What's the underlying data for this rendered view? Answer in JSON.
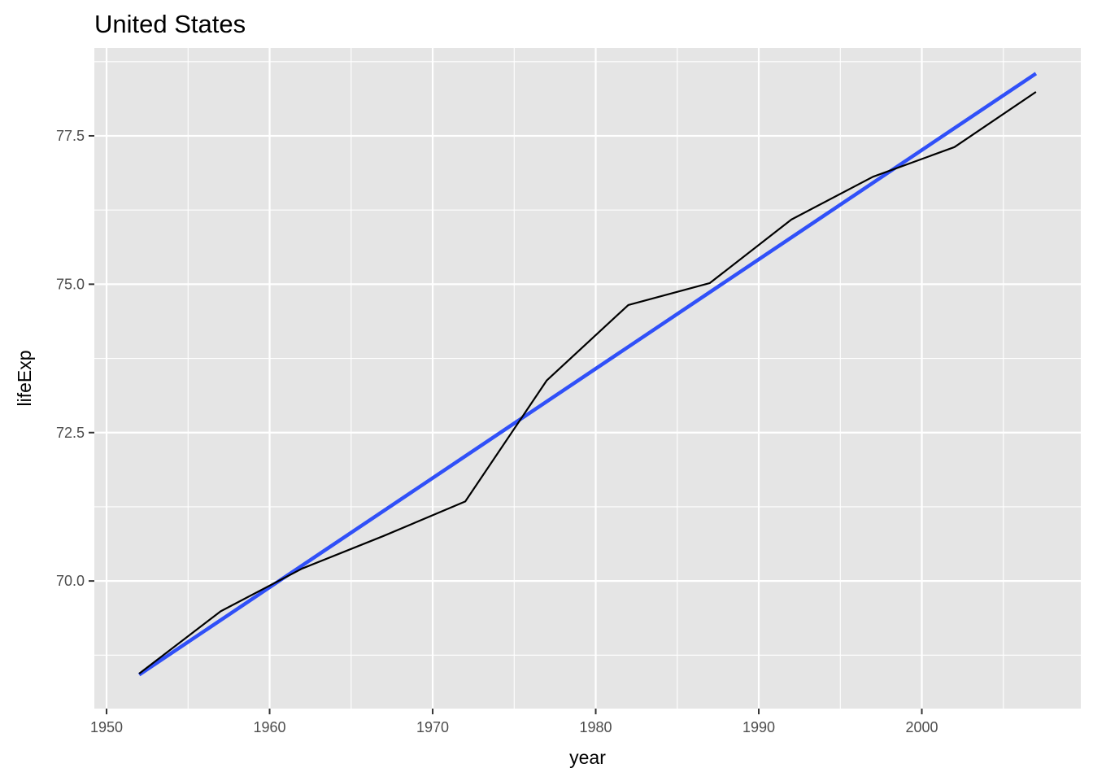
{
  "chart_data": {
    "type": "line",
    "title": "United States",
    "xlabel": "year",
    "ylabel": "lifeExp",
    "xlim": [
      1949.25,
      2009.75
    ],
    "ylim": [
      67.85,
      78.98
    ],
    "x_ticks": [
      1950,
      1960,
      1970,
      1980,
      1990,
      2000
    ],
    "x_tick_labels": [
      "1950",
      "1960",
      "1970",
      "1980",
      "1990",
      "2000"
    ],
    "y_ticks": [
      70.0,
      72.5,
      75.0,
      77.5
    ],
    "y_tick_labels": [
      "70.0",
      "72.5",
      "75.0",
      "77.5"
    ],
    "grid": true,
    "legend": "none",
    "colors": {
      "panel": "#e5e5e5",
      "grid": "#ffffff",
      "series": "#000000",
      "trend": "#3050f8"
    },
    "series": [
      {
        "x": [
          1952,
          1957,
          1962,
          1967,
          1972,
          1977,
          1982,
          1987,
          1992,
          1997,
          2002,
          2007
        ],
        "values": [
          68.44,
          69.49,
          70.21,
          70.76,
          71.34,
          73.38,
          74.65,
          75.02,
          76.09,
          76.81,
          77.31,
          78.24
        ]
      }
    ],
    "trend_line": {
      "x": [
        1952,
        2007
      ],
      "values": [
        68.42,
        78.55
      ]
    }
  }
}
